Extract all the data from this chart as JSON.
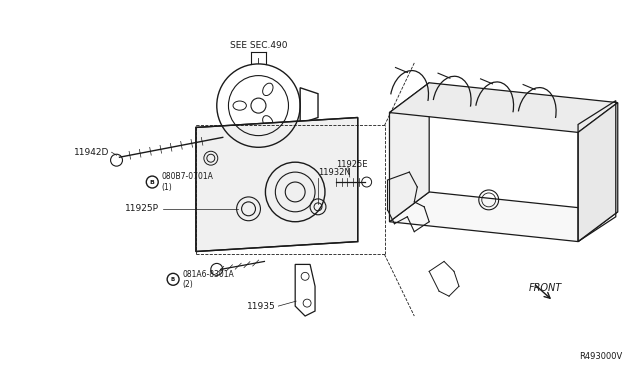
{
  "bg_color": "#ffffff",
  "line_color": "#1a1a1a",
  "fig_width": 6.4,
  "fig_height": 3.72,
  "dpi": 100,
  "labels": {
    "see_sec": "SEE SEC.490",
    "11942D": "11942D",
    "080B7": "µ080B7-0701A\n(1)",
    "11925E": "11925E",
    "11932N": "11932N",
    "11925P": "11925P",
    "081A6": "µ081A6-8301A\n(2)",
    "11935": "11935",
    "front": "FRONT",
    "ref": "R493000V"
  }
}
